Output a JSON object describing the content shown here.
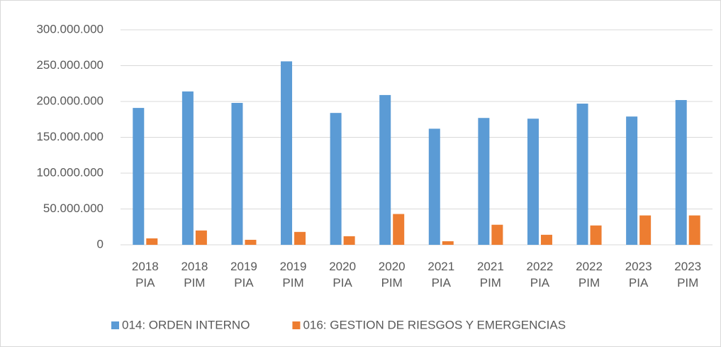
{
  "chart_data": {
    "type": "bar",
    "categories": [
      "2018 PIA",
      "2018 PIM",
      "2019 PIA",
      "2019 PIM",
      "2020 PIA",
      "2020 PIM",
      "2021 PIA",
      "2021 PIM",
      "2022 PIA",
      "2022 PIM",
      "2023 PIA",
      "2023 PIM"
    ],
    "series": [
      {
        "name": "014: ORDEN INTERNO",
        "color": "#5b9bd5",
        "values": [
          191000000,
          214000000,
          198000000,
          256000000,
          184000000,
          209000000,
          162000000,
          177000000,
          176000000,
          197000000,
          179000000,
          202000000
        ]
      },
      {
        "name": "016: GESTION DE RIESGOS Y EMERGENCIAS",
        "color": "#ed7d31",
        "values": [
          9000000,
          20000000,
          7000000,
          18000000,
          12000000,
          43000000,
          5000000,
          28000000,
          14000000,
          27000000,
          41000000,
          41000000
        ]
      }
    ],
    "ylim": [
      0,
      300000000
    ],
    "yticks": [
      0,
      {
        "value": 50000000,
        "label": "50.000.000"
      },
      {
        "value": 100000000,
        "label": "100.000.000"
      },
      {
        "value": 150000000,
        "label": "150.000.000"
      },
      {
        "value": 200000000,
        "label": "200.000.000"
      },
      {
        "value": 250000000,
        "label": "250.000.000"
      },
      {
        "value": 300000000,
        "label": "300.000.000"
      }
    ],
    "grid": true,
    "legend": "bottom"
  }
}
